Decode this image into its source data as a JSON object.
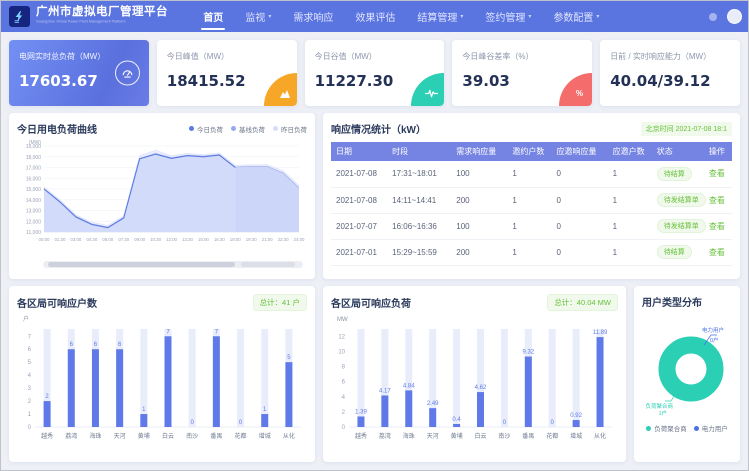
{
  "header": {
    "title": "广州市虚拟电厂管理平台",
    "subtitle": "Guangzhou Virtual Power Plant Management Platform",
    "nav": [
      {
        "label": "首页",
        "active": true,
        "caret": false
      },
      {
        "label": "监视",
        "active": false,
        "caret": true
      },
      {
        "label": "需求响应",
        "active": false,
        "caret": false
      },
      {
        "label": "效果评估",
        "active": false,
        "caret": false
      },
      {
        "label": "结算管理",
        "active": false,
        "caret": true
      },
      {
        "label": "签约管理",
        "active": false,
        "caret": true
      },
      {
        "label": "参数配置",
        "active": false,
        "caret": true
      }
    ]
  },
  "kpis": [
    {
      "label": "电网实时总负荷（MW）",
      "value": "17603.67",
      "icon": "gauge-icon",
      "style": "primary",
      "accent": "#ffffff"
    },
    {
      "label": "今日峰值（MW）",
      "value": "18415.52",
      "icon": "peak-icon",
      "style": "plain",
      "accent": "#F7A727"
    },
    {
      "label": "今日谷值（MW）",
      "value": "11227.30",
      "icon": "pulse-icon",
      "style": "plain",
      "accent": "#2BCFB4"
    },
    {
      "label": "今日峰谷差率（%）",
      "value": "39.03",
      "icon": "percent-icon",
      "style": "plain",
      "accent": "#F56C6C"
    },
    {
      "label": "日前 / 实时响应能力（MW）",
      "value": "40.04/39.12",
      "icon": "",
      "style": "plain",
      "accent": ""
    }
  ],
  "chart_data": [
    {
      "type": "area",
      "title": "今日用电负荷曲线",
      "unit": "(MW)",
      "y_min": 11000,
      "y_max": 19000,
      "y_step": 1000,
      "x": [
        "00:00",
        "01:30",
        "03:00",
        "04:30",
        "06:00",
        "07:30",
        "09:00",
        "10:30",
        "12:00",
        "13:30",
        "15:00",
        "16:30",
        "18:00",
        "19:30",
        "21:00",
        "22:30",
        "24:00"
      ],
      "legend": [
        {
          "name": "今日负荷",
          "color": "#5b7be0"
        },
        {
          "name": "基线负荷",
          "color": "#98a9f0"
        },
        {
          "name": "昨日负荷",
          "color": "#d6ddf8"
        }
      ],
      "series": [
        {
          "name": "昨日负荷",
          "color": "#dfe5fb",
          "fill": "#e8ecfc",
          "values": [
            15200,
            14000,
            12600,
            11900,
            11600,
            12500,
            18100,
            18600,
            18100,
            18300,
            18200,
            18350,
            17200,
            17250,
            17250,
            16700,
            15300
          ]
        },
        {
          "name": "基线负荷",
          "color": "#aab6ef",
          "fill": "#c9d3f7",
          "values": [
            15050,
            13850,
            12450,
            11750,
            11450,
            12350,
            17850,
            18300,
            17900,
            18150,
            18050,
            18200,
            17050,
            17100,
            17100,
            16500,
            15100
          ]
        },
        {
          "name": "今日负荷",
          "color": "#5b7be0",
          "fill": "#d4dcfa",
          "values": [
            15000,
            13800,
            12400,
            11700,
            11400,
            12300,
            17800,
            18250,
            17850,
            18100,
            18000,
            18150,
            17000,
            null,
            null,
            null,
            null
          ]
        }
      ]
    },
    {
      "type": "bar",
      "title": "各区局可响应户数",
      "badge": "总计：41 户",
      "unit": "户",
      "categories": [
        "越秀",
        "荔湾",
        "海珠",
        "天河",
        "黄埔",
        "白云",
        "南沙",
        "番禺",
        "花都",
        "增城",
        "从化"
      ],
      "values": [
        2,
        6,
        6,
        6,
        1,
        7,
        0,
        7,
        0,
        1,
        5
      ],
      "y_ticks": [
        0,
        1,
        2,
        3,
        4,
        5,
        6,
        7
      ],
      "bar_color": "#6079e8",
      "track_color": "#e9edfb"
    },
    {
      "type": "bar",
      "title": "各区局可响应负荷",
      "badge": "总计：40.04 MW",
      "unit": "MW",
      "categories": [
        "越秀",
        "荔湾",
        "海珠",
        "天河",
        "黄埔",
        "白云",
        "南沙",
        "番禺",
        "花都",
        "增城",
        "从化"
      ],
      "values": [
        1.39,
        4.17,
        4.84,
        2.49,
        0.4,
        4.62,
        0,
        9.32,
        0,
        0.92,
        11.89
      ],
      "y_ticks": [
        0,
        2,
        4,
        6,
        8,
        10,
        12
      ],
      "bar_color": "#6079e8",
      "track_color": "#e9edfb"
    },
    {
      "type": "pie",
      "title": "用户类型分布",
      "slices": [
        {
          "name": "负荷聚合商",
          "count_label": "1户",
          "value": 1,
          "color": "#2BCFB4"
        },
        {
          "name": "电力用户",
          "count_label": "0户",
          "value": 0,
          "color": "#4a6fe8"
        }
      ]
    }
  ],
  "response_table": {
    "title": "响应情况统计（kW）",
    "time_badge": "北京时间 2021-07-08 18:1",
    "columns": [
      "日期",
      "时段",
      "需求响应量",
      "邀约户数",
      "应邀响应量",
      "应邀户数",
      "状态",
      "操作"
    ],
    "action_label": "查看",
    "rows": [
      {
        "date": "2021-07-08",
        "period": "17:31~18:01",
        "demand": "100",
        "invited": "1",
        "responded": "0",
        "resp_users": "1",
        "status": "待结算"
      },
      {
        "date": "2021-07-08",
        "period": "14:11~14:41",
        "demand": "200",
        "invited": "1",
        "responded": "0",
        "resp_users": "1",
        "status": "待发结算单"
      },
      {
        "date": "2021-07-07",
        "period": "16:06~16:36",
        "demand": "100",
        "invited": "1",
        "responded": "0",
        "resp_users": "1",
        "status": "待发结算单"
      },
      {
        "date": "2021-07-01",
        "period": "15:29~15:59",
        "demand": "200",
        "invited": "1",
        "responded": "0",
        "resp_users": "1",
        "status": "待结算"
      }
    ]
  }
}
